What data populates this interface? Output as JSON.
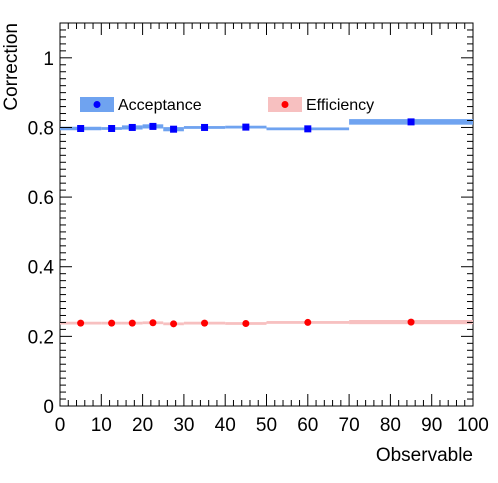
{
  "chart_data": {
    "type": "scatter",
    "xlabel": "Observable",
    "ylabel": "Correction",
    "xlim": [
      0,
      100
    ],
    "ylim": [
      0,
      1.1
    ],
    "x_ticks": [
      0,
      10,
      20,
      30,
      40,
      50,
      60,
      70,
      80,
      90,
      100
    ],
    "x_tick_labels": [
      "0",
      "10",
      "20",
      "30",
      "40",
      "50",
      "60",
      "70",
      "80",
      "90",
      "100"
    ],
    "y_ticks": [
      0,
      0.2,
      0.4,
      0.6,
      0.8,
      1
    ],
    "y_tick_labels": [
      "0",
      "0.2",
      "0.4",
      "0.6",
      "0.8",
      "1"
    ],
    "grid": false,
    "legend_placement": "upper",
    "bin_edges": [
      0,
      10,
      15,
      20,
      25,
      30,
      40,
      50,
      70,
      100
    ],
    "series": [
      {
        "name": "Acceptance",
        "marker": "square",
        "color": "#0000ff",
        "band_color": "#6fa3f0",
        "x": [
          5,
          12.5,
          17.5,
          22.5,
          27.5,
          35,
          45,
          60,
          85
        ],
        "values": [
          0.797,
          0.797,
          0.8,
          0.803,
          0.795,
          0.8,
          0.801,
          0.796,
          0.816
        ],
        "uncertainty": [
          0.005,
          0.004,
          0.006,
          0.006,
          0.006,
          0.004,
          0.004,
          0.004,
          0.008
        ]
      },
      {
        "name": "Efficiency",
        "marker": "circle",
        "color": "#ff0000",
        "band_color": "#f7c0c0",
        "x": [
          5,
          12.5,
          17.5,
          22.5,
          27.5,
          35,
          45,
          60,
          85
        ],
        "values": [
          0.238,
          0.238,
          0.238,
          0.239,
          0.236,
          0.238,
          0.237,
          0.24,
          0.241
        ],
        "uncertainty": [
          0.004,
          0.004,
          0.004,
          0.004,
          0.004,
          0.004,
          0.004,
          0.004,
          0.006
        ]
      }
    ]
  }
}
